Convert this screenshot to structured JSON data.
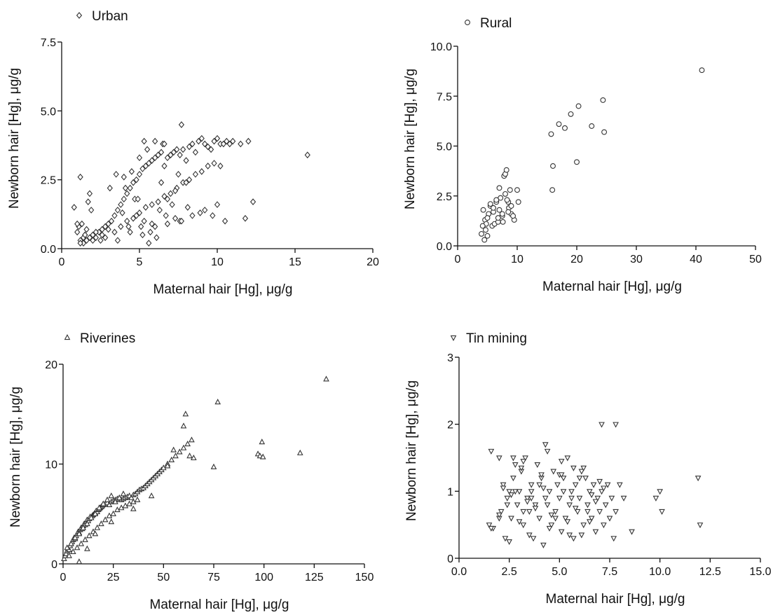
{
  "chart_data": [
    {
      "type": "scatter",
      "panel": "urban",
      "legend": "Urban",
      "legend_placement": "top-left",
      "marker": "diamond",
      "xlabel": "Maternal hair [Hg], μg/g",
      "ylabel": "Newborn hair [Hg], μg/g",
      "xlim": [
        0,
        20
      ],
      "ylim": [
        0,
        7.5
      ],
      "xticks": [
        0,
        5,
        10,
        15,
        20
      ],
      "yticks": [
        0,
        2.5,
        5,
        7.5
      ],
      "xtick_labels": [
        "0",
        "5",
        "10",
        "15",
        "20"
      ],
      "ytick_labels": [
        "0.0",
        "2.5",
        "5.0",
        "7.5"
      ],
      "grid": false,
      "series": [
        {
          "x": [
            0.8,
            1.0,
            1.1,
            1.2,
            1.3,
            1.4,
            1.5,
            1.6,
            1.7,
            1.8,
            2.0,
            2.2,
            2.4,
            2.6,
            2.8,
            3.0,
            3.2,
            3.4,
            3.6,
            3.8,
            4.0,
            4.2,
            4.4,
            4.6,
            4.8,
            5.0,
            5.2,
            5.4,
            5.6,
            5.8,
            6.0,
            6.2,
            6.4,
            6.6,
            6.8,
            7.0,
            7.2,
            7.4,
            7.6,
            7.8,
            8.0,
            8.2,
            8.4,
            8.6,
            8.8,
            9.0,
            9.2,
            9.4,
            9.6,
            9.8,
            10.0,
            10.2,
            10.4,
            10.6,
            10.8,
            11.0,
            11.5,
            12.0,
            12.3,
            1.2,
            1.5,
            1.8,
            2.2,
            2.6,
            3.0,
            3.4,
            3.8,
            4.2,
            4.6,
            5.0,
            5.4,
            5.8,
            6.2,
            6.6,
            7.0,
            7.4,
            7.8,
            8.2,
            8.6,
            9.0,
            9.4,
            9.8,
            10.2,
            1.0,
            1.4,
            2.0,
            2.8,
            3.6,
            4.4,
            5.2,
            6.0,
            6.8,
            7.6,
            8.4,
            9.2,
            10.0,
            4.0,
            4.5,
            5.0,
            5.5,
            6.0,
            6.5,
            7.0,
            7.5,
            8.0,
            4.8,
            5.3,
            5.8,
            6.3,
            6.8,
            7.3,
            3.5,
            4.1,
            4.7,
            5.1,
            5.7,
            6.1,
            6.7,
            7.1,
            7.7,
            1.2,
            1.6,
            1.9,
            2.5,
            3.1,
            3.9,
            4.3,
            4.9,
            5.6,
            6.4,
            7.3,
            8.1,
            8.9,
            9.7,
            10.5,
            11.8,
            5.3,
            6.6,
            7.7,
            15.8
          ],
          "y": [
            1.5,
            0.6,
            0.8,
            2.6,
            0.9,
            0.4,
            0.5,
            0.3,
            1.7,
            2.0,
            0.5,
            0.4,
            0.6,
            0.7,
            0.8,
            0.9,
            1.0,
            1.2,
            1.4,
            1.6,
            1.8,
            2.0,
            2.2,
            2.4,
            2.5,
            2.7,
            2.9,
            3.0,
            3.1,
            3.2,
            3.3,
            3.4,
            3.5,
            3.0,
            3.3,
            3.4,
            3.5,
            3.6,
            3.4,
            3.6,
            3.2,
            3.7,
            3.8,
            3.5,
            3.9,
            4.0,
            3.8,
            3.7,
            3.6,
            3.9,
            4.0,
            3.8,
            3.8,
            3.9,
            3.8,
            3.9,
            3.8,
            3.9,
            1.7,
            0.3,
            0.5,
            0.4,
            0.6,
            0.5,
            0.7,
            0.6,
            0.8,
            1.0,
            1.1,
            1.3,
            1.5,
            1.6,
            1.7,
            1.9,
            2.0,
            2.2,
            2.4,
            2.5,
            2.7,
            2.8,
            3.0,
            3.1,
            3.0,
            0.9,
            0.2,
            0.3,
            0.4,
            0.3,
            0.6,
            0.5,
            0.8,
            0.9,
            1.0,
            1.2,
            1.4,
            1.6,
            2.6,
            2.8,
            3.3,
            3.6,
            3.9,
            3.8,
            3.4,
            2.7,
            2.4,
            1.2,
            1.0,
            0.9,
            1.4,
            1.8,
            2.1,
            2.7,
            2.2,
            1.8,
            0.8,
            0.6,
            0.4,
            1.2,
            1.6,
            1.0,
            0.2,
            0.7,
            1.4,
            0.3,
            2.2,
            1.3,
            0.8,
            1.8,
            0.2,
            2.4,
            1.1,
            1.5,
            1.3,
            1.2,
            1.0,
            1.1,
            3.9,
            3.8,
            4.5,
            3.4
          ]
        }
      ]
    },
    {
      "type": "scatter",
      "panel": "rural",
      "legend": "Rural",
      "legend_placement": "top-left",
      "marker": "circle",
      "xlabel": "Maternal hair [Hg], μg/g",
      "ylabel": "Newborn hair [Hg], μg/g",
      "xlim": [
        0,
        50
      ],
      "ylim": [
        0,
        10
      ],
      "xticks": [
        0,
        10,
        20,
        30,
        40,
        50
      ],
      "yticks": [
        0,
        2.5,
        5,
        7.5,
        10
      ],
      "xtick_labels": [
        "0",
        "10",
        "20",
        "30",
        "40",
        "50"
      ],
      "ytick_labels": [
        "0.0",
        "2.5",
        "5.0",
        "7.5",
        "10.0"
      ],
      "grid": false,
      "series": [
        {
          "x": [
            4.0,
            4.3,
            4.5,
            4.6,
            4.8,
            5.0,
            5.2,
            5.5,
            5.8,
            6.0,
            6.2,
            6.5,
            6.8,
            7.0,
            7.2,
            7.5,
            7.8,
            8.0,
            8.2,
            8.5,
            8.8,
            9.0,
            9.5,
            10.0,
            10.2,
            4.2,
            5.0,
            6.0,
            7.0,
            7.6,
            8.0,
            8.3,
            8.6,
            9.0,
            9.3,
            6.5,
            7.5,
            8.5,
            5.5,
            6.8,
            4.7,
            15.7,
            15.9,
            16.0,
            17.0,
            18.0,
            19.0,
            20.0,
            20.3,
            22.5,
            24.4,
            24.6,
            41.0
          ],
          "y": [
            0.6,
            1.8,
            0.3,
            1.3,
            1.1,
            0.5,
            1.6,
            2.0,
            1.0,
            1.7,
            1.1,
            2.2,
            1.2,
            2.9,
            2.4,
            1.5,
            3.5,
            3.6,
            3.8,
            2.2,
            2.8,
            1.6,
            1.3,
            2.8,
            2.2,
            1.0,
            1.4,
            1.9,
            1.8,
            1.2,
            2.6,
            2.3,
            1.9,
            2.0,
            1.5,
            2.3,
            1.6,
            1.7,
            2.1,
            1.4,
            0.8,
            5.6,
            2.8,
            4.0,
            6.1,
            5.9,
            6.6,
            4.2,
            7.0,
            6.0,
            7.3,
            5.7,
            8.8
          ]
        }
      ]
    },
    {
      "type": "scatter",
      "panel": "riverines",
      "legend": "Riverines",
      "legend_placement": "top-left",
      "marker": "triangle-up",
      "xlabel": "Maternal hair [Hg], μg/g",
      "ylabel": "Newborn hair [Hg], μg/g",
      "xlim": [
        0,
        150
      ],
      "ylim": [
        0,
        20
      ],
      "xticks": [
        0,
        25,
        50,
        75,
        100,
        125,
        150
      ],
      "yticks": [
        0,
        10,
        20
      ],
      "xtick_labels": [
        "0",
        "25",
        "50",
        "75",
        "100",
        "125",
        "150"
      ],
      "ytick_labels": [
        "0",
        "10",
        "20"
      ],
      "grid": false,
      "series": [
        {
          "x": [
            0.5,
            1.0,
            1.5,
            2.0,
            2.5,
            3.0,
            3.5,
            4.0,
            4.5,
            5.0,
            5.5,
            6.0,
            6.5,
            7.0,
            7.5,
            8.0,
            8.5,
            9.0,
            9.5,
            10.0,
            10.5,
            11.0,
            11.5,
            12.0,
            12.5,
            13.0,
            13.5,
            14.0,
            14.5,
            15.0,
            15.5,
            16.0,
            16.5,
            17.0,
            17.5,
            18.0,
            18.5,
            19.0,
            19.5,
            20.0,
            21.0,
            22.0,
            23.0,
            24.0,
            25.0,
            26.0,
            27.0,
            28.0,
            29.0,
            30.0,
            31.0,
            32.0,
            33.0,
            34.0,
            35.0,
            36.0,
            37.0,
            38.0,
            39.0,
            40.0,
            41.0,
            42.0,
            43.0,
            44.0,
            45.0,
            46.0,
            47.0,
            48.0,
            49.0,
            50.0,
            52.0,
            54.0,
            56.0,
            58.0,
            60.0,
            62.0,
            64.0,
            3.0,
            5.0,
            7.0,
            9.0,
            11.0,
            13.0,
            15.0,
            17.0,
            19.0,
            21.0,
            23.0,
            25.0,
            27.0,
            29.0,
            31.0,
            33.0,
            35.0,
            37.0,
            2.0,
            4.0,
            6.0,
            8.0,
            10.0,
            12.0,
            14.0,
            16.0,
            18.0,
            20.0,
            22.0,
            24.0,
            26.0,
            28.0,
            8.0,
            12.0,
            16.0,
            24.0,
            30.0,
            35.0,
            44.0,
            52.0,
            55.0,
            60.0,
            61.0,
            63.0,
            65.0,
            75.0,
            77.0,
            97.0,
            98.0,
            99.0,
            99.5,
            118.0,
            131.0
          ],
          "y": [
            0.5,
            0.8,
            1.0,
            1.3,
            1.5,
            1.4,
            1.8,
            2.0,
            2.2,
            2.4,
            2.6,
            2.5,
            2.8,
            3.0,
            3.2,
            3.1,
            3.4,
            3.6,
            3.5,
            3.8,
            4.0,
            3.9,
            4.2,
            4.4,
            4.3,
            4.5,
            4.7,
            4.6,
            4.8,
            4.9,
            5.0,
            5.1,
            5.3,
            5.2,
            5.4,
            5.5,
            5.6,
            5.7,
            5.8,
            5.9,
            6.0,
            6.1,
            5.9,
            6.2,
            6.3,
            6.4,
            6.5,
            6.6,
            6.4,
            6.5,
            6.6,
            6.7,
            6.8,
            6.6,
            6.9,
            7.0,
            7.2,
            7.4,
            7.5,
            7.6,
            7.8,
            8.0,
            8.2,
            8.4,
            8.6,
            8.8,
            9.0,
            9.2,
            9.4,
            9.6,
            10.0,
            10.4,
            10.8,
            11.2,
            11.6,
            12.0,
            12.4,
            0.8,
            1.2,
            1.6,
            2.0,
            2.4,
            2.8,
            3.2,
            3.6,
            4.0,
            4.4,
            4.8,
            5.0,
            5.4,
            5.6,
            5.8,
            6.0,
            6.2,
            6.4,
            1.6,
            2.0,
            2.6,
            3.0,
            3.6,
            4.0,
            4.6,
            5.0,
            5.6,
            6.0,
            6.4,
            6.8,
            6.2,
            6.6,
            0.2,
            1.5,
            3.0,
            4.2,
            7.0,
            5.5,
            6.8,
            9.8,
            11.4,
            13.8,
            15.0,
            10.8,
            10.6,
            9.7,
            16.2,
            11.0,
            10.8,
            12.2,
            10.7,
            11.1,
            18.5
          ]
        }
      ]
    },
    {
      "type": "scatter",
      "panel": "tin-mining",
      "legend": "Tin mining",
      "legend_placement": "top-left",
      "marker": "triangle-down",
      "xlabel": "Maternal hair [Hg], μg/g",
      "ylabel": "Newborn hair [Hg], μg/g",
      "xlim": [
        0,
        15
      ],
      "ylim": [
        0,
        3
      ],
      "xticks": [
        0,
        2.5,
        5,
        7.5,
        10,
        12.5,
        15
      ],
      "yticks": [
        0,
        1,
        2,
        3
      ],
      "xtick_labels": [
        "0.0",
        "2.5",
        "5.0",
        "7.5",
        "10.0",
        "12.5",
        "15.0"
      ],
      "ytick_labels": [
        "0",
        "1",
        "2",
        "3"
      ],
      "grid": false,
      "series": [
        {
          "x": [
            1.5,
            1.6,
            1.7,
            2.0,
            2.1,
            2.2,
            2.3,
            2.4,
            2.5,
            2.6,
            2.7,
            2.8,
            2.9,
            3.0,
            3.1,
            3.2,
            3.3,
            3.4,
            3.5,
            3.6,
            3.7,
            3.8,
            3.9,
            4.0,
            4.1,
            4.2,
            4.3,
            4.4,
            4.5,
            4.6,
            4.7,
            4.8,
            4.9,
            5.0,
            5.1,
            5.2,
            5.3,
            5.4,
            5.5,
            5.6,
            5.7,
            5.8,
            5.9,
            6.0,
            6.1,
            6.2,
            6.3,
            6.4,
            6.5,
            6.6,
            6.7,
            6.8,
            6.9,
            7.0,
            7.1,
            7.2,
            7.3,
            7.4,
            7.5,
            7.6,
            7.7,
            7.8,
            8.0,
            8.2,
            8.6,
            9.8,
            10.0,
            10.1,
            11.9,
            12.0,
            2.0,
            2.4,
            2.8,
            3.2,
            3.6,
            4.0,
            4.4,
            4.8,
            5.2,
            5.6,
            6.0,
            6.4,
            6.8,
            7.2,
            2.2,
            2.6,
            3.0,
            3.4,
            3.8,
            4.2,
            4.6,
            5.0,
            5.4,
            5.8,
            6.2,
            6.6,
            7.0,
            2.5,
            3.5,
            4.5,
            5.5,
            6.5,
            3.1,
            4.1,
            5.1,
            6.1,
            1.6,
            2.0,
            3.2,
            4.3,
            5.1,
            5.7,
            7.1,
            7.8,
            2.7,
            3.6
          ],
          "y": [
            0.5,
            1.6,
            0.45,
            1.5,
            0.7,
            1.1,
            0.3,
            0.9,
            1.0,
            0.6,
            1.2,
            1.4,
            0.8,
            1.0,
            1.3,
            0.5,
            1.5,
            0.9,
            0.7,
            1.1,
            0.3,
            0.8,
            1.4,
            0.6,
            1.2,
            0.2,
            0.9,
            1.6,
            1.0,
            0.5,
            1.3,
            0.7,
            1.1,
            0.9,
            0.4,
            1.2,
            0.6,
            1.5,
            0.8,
            1.0,
            0.3,
            1.1,
            0.7,
            0.9,
            1.3,
            0.5,
            1.2,
            0.8,
            1.0,
            0.6,
            1.1,
            0.4,
            0.9,
            0.7,
            1.0,
            0.5,
            0.8,
            1.1,
            0.6,
            0.9,
            0.3,
            0.7,
            1.1,
            0.9,
            0.4,
            0.9,
            1.0,
            0.7,
            1.2,
            0.5,
            0.6,
            0.8,
            1.0,
            0.7,
            0.9,
            1.1,
            0.8,
            0.6,
            1.0,
            0.9,
            1.2,
            0.7,
            0.85,
            1.05,
            1.05,
            0.95,
            0.55,
            0.85,
            0.75,
            1.05,
            0.65,
            1.25,
            0.55,
            0.75,
            1.35,
            0.95,
            1.15,
            0.25,
            0.35,
            0.45,
            0.35,
            0.55,
            1.35,
            1.25,
            1.45,
            0.35,
            0.45,
            0.65,
            1.45,
            1.7,
            1.25,
            1.35,
            2.0,
            2.0,
            1.5,
            1.0
          ],
          "y_note": ""
        }
      ]
    }
  ]
}
